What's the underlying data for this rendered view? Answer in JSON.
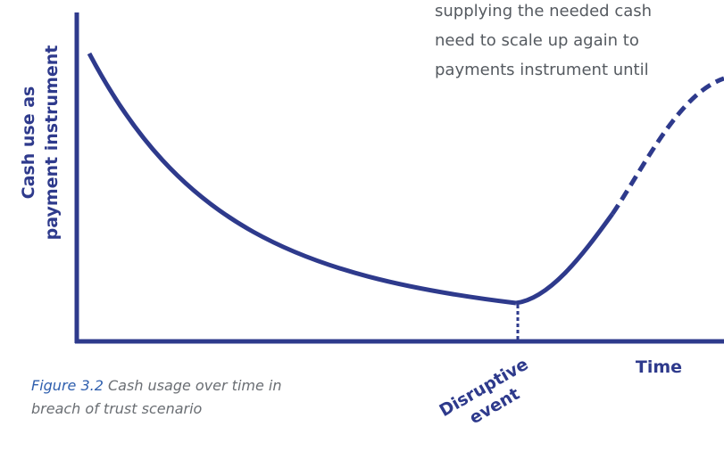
{
  "text_block": {
    "lines": [
      "supplying the needed cash",
      "need to scale up again to",
      "payments instrument until"
    ]
  },
  "axes": {
    "y_label": [
      "Cash use as",
      "payment instrument"
    ],
    "x_label": "Time"
  },
  "event": [
    "Disruptive",
    "event"
  ],
  "caption": {
    "number": "Figure 3.2",
    "lines": [
      "Cash usage over time in",
      "breach of trust scenario"
    ]
  }
}
